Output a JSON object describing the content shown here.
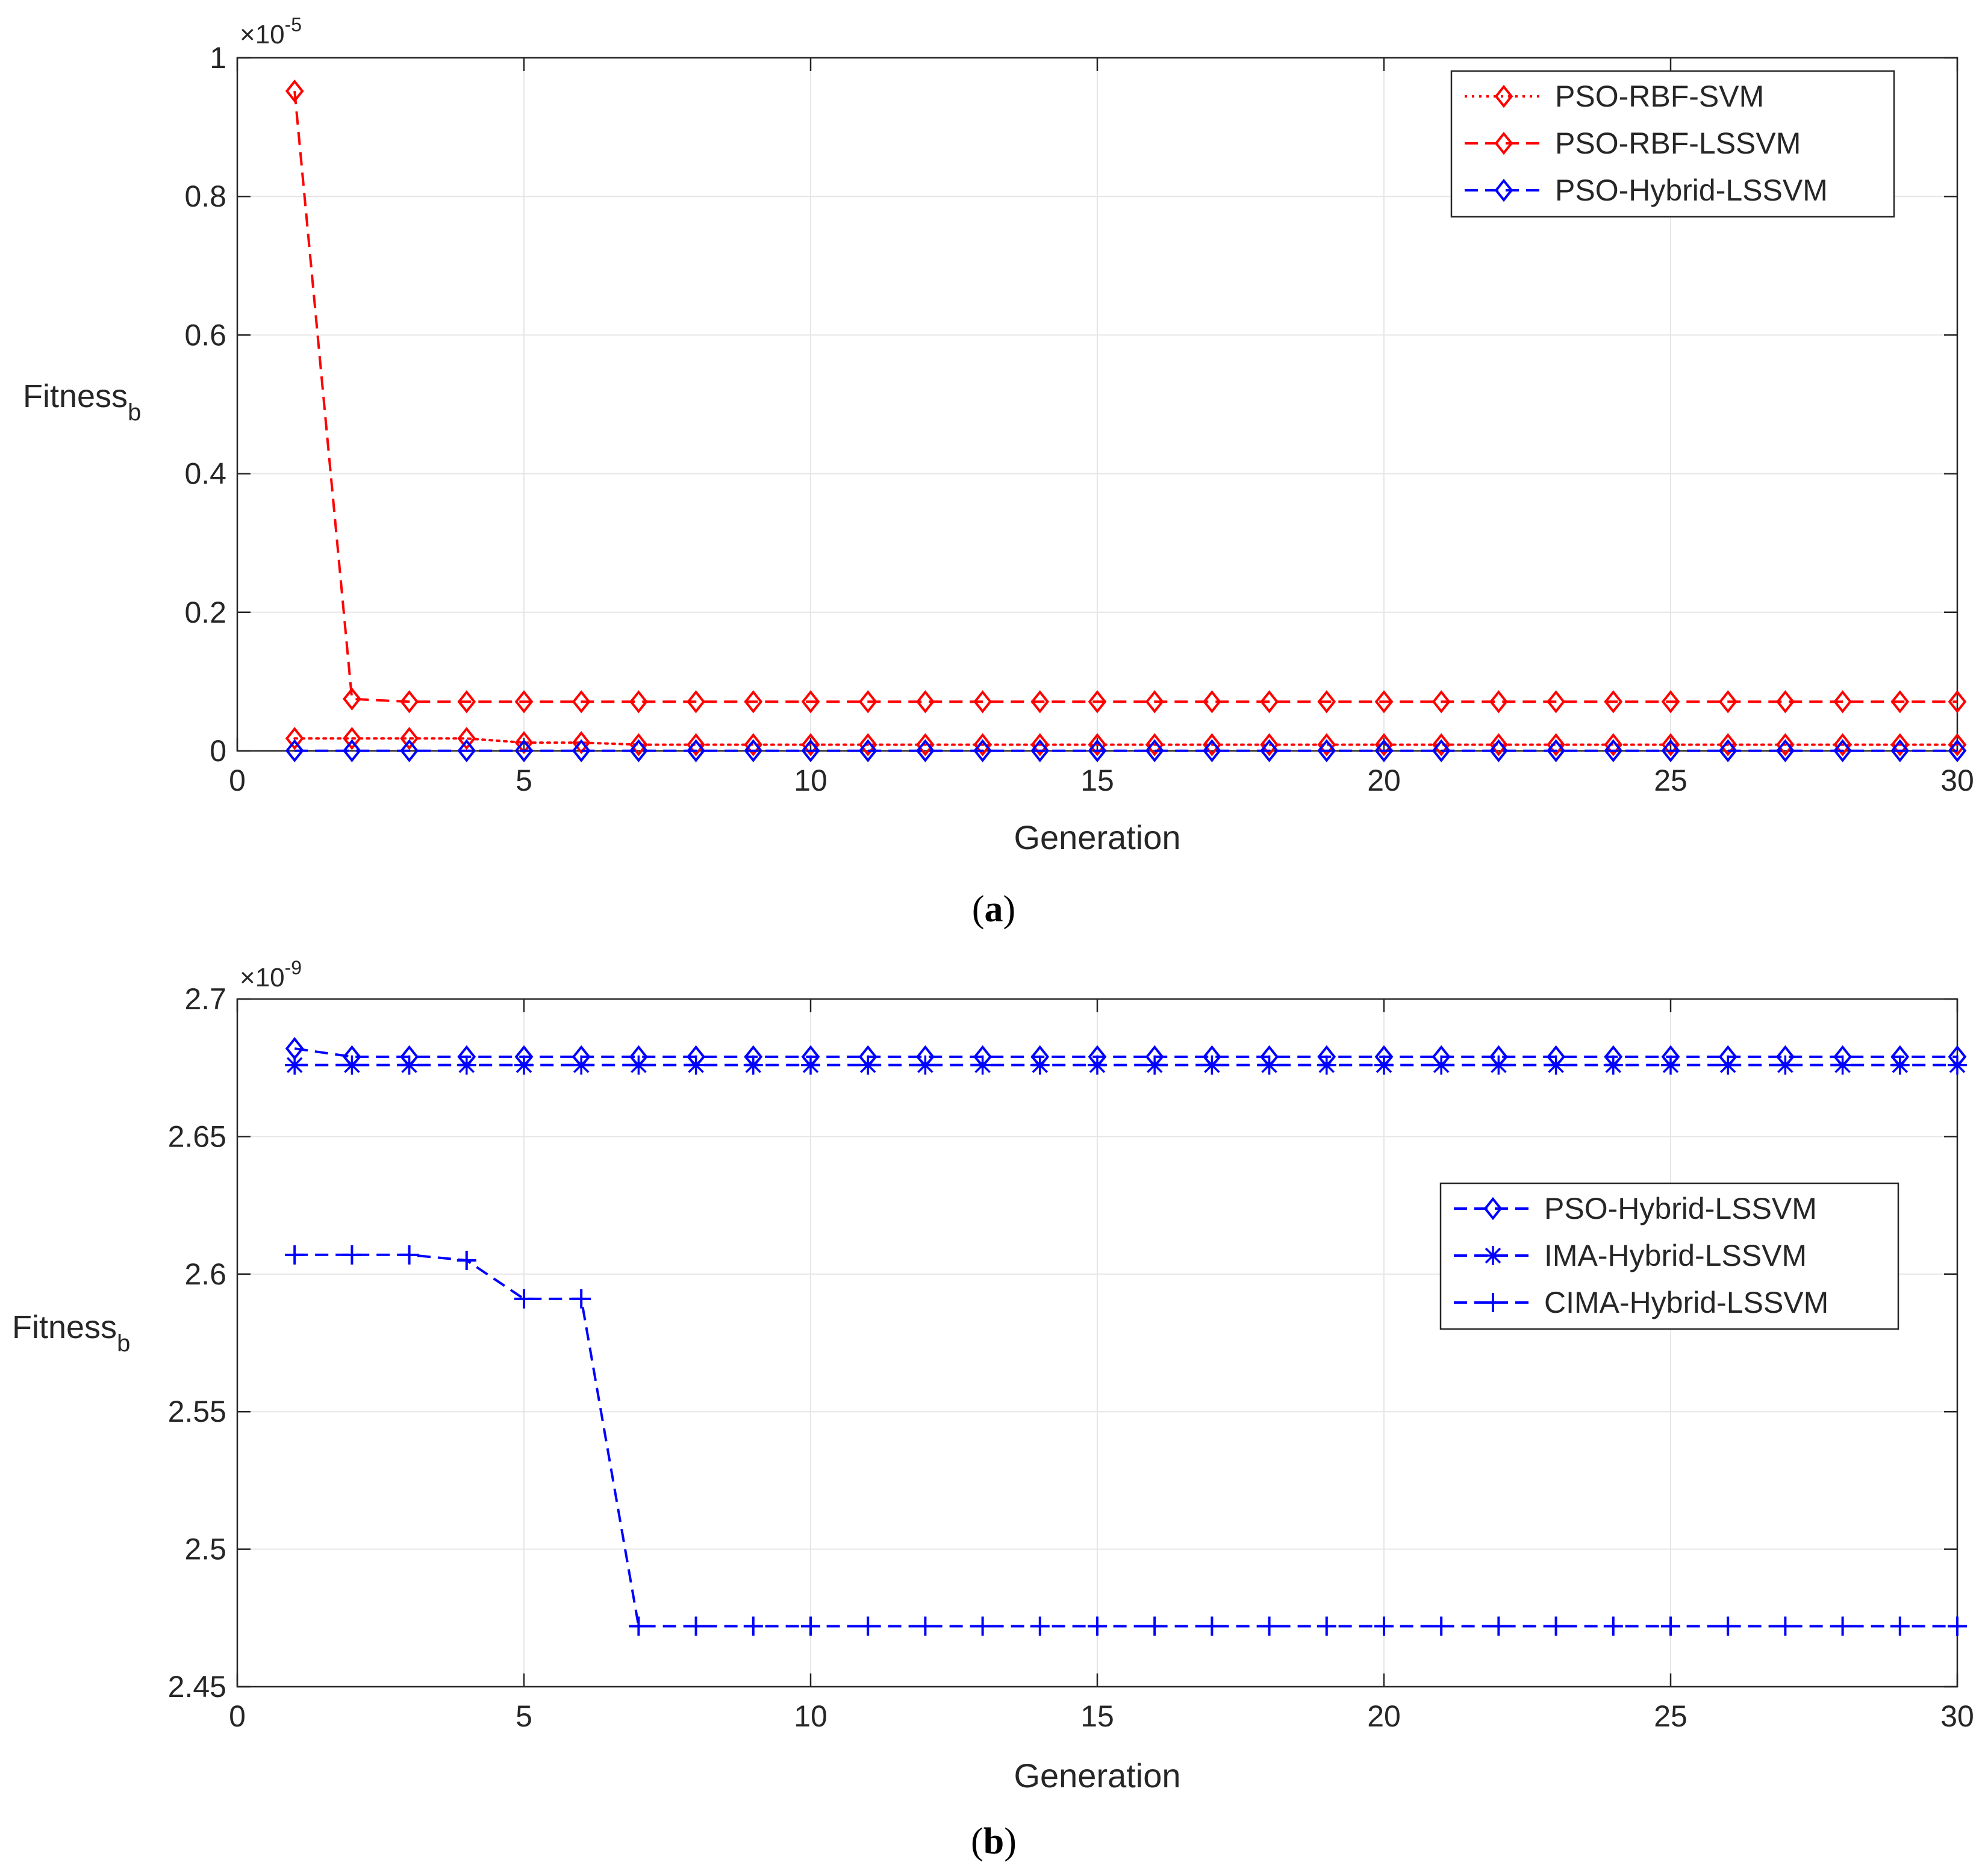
{
  "colors": {
    "red": "#ff0000",
    "blue": "#0000ff",
    "grid": "#e6e6e6",
    "axis": "#262626"
  },
  "chart_data": [
    {
      "type": "line",
      "caption_letter": "a",
      "xlabel": "Generation",
      "ylabel": "Fitness",
      "ylabel_sub": "b",
      "exponent_label": "×10",
      "exponent_power": "-5",
      "xlim": [
        0,
        30
      ],
      "ylim": [
        0,
        1
      ],
      "xticks": [
        0,
        5,
        10,
        15,
        20,
        25,
        30
      ],
      "yticks": [
        0,
        0.2,
        0.4,
        0.6,
        0.8,
        1
      ],
      "ytick_labels": [
        "0",
        "0.2",
        "0.4",
        "0.6",
        "0.8",
        "1"
      ],
      "grid": true,
      "legend_location": "top-right",
      "x": [
        1,
        2,
        3,
        4,
        5,
        6,
        7,
        8,
        9,
        10,
        11,
        12,
        13,
        14,
        15,
        16,
        17,
        18,
        19,
        20,
        21,
        22,
        23,
        24,
        25,
        26,
        27,
        28,
        29,
        30
      ],
      "series": [
        {
          "name": "PSO-RBF-SVM",
          "color": "#ff0000",
          "linestyle": "dotted",
          "marker": "diamond",
          "values": [
            0.018,
            0.018,
            0.018,
            0.018,
            0.012,
            0.012,
            0.009,
            0.009,
            0.009,
            0.009,
            0.009,
            0.009,
            0.009,
            0.009,
            0.009,
            0.009,
            0.009,
            0.009,
            0.009,
            0.009,
            0.009,
            0.009,
            0.009,
            0.009,
            0.009,
            0.009,
            0.009,
            0.009,
            0.009,
            0.009
          ]
        },
        {
          "name": "PSO-RBF-LSSVM",
          "color": "#ff0000",
          "linestyle": "dashed",
          "marker": "diamond",
          "values": [
            0.952,
            0.075,
            0.071,
            0.071,
            0.071,
            0.071,
            0.071,
            0.071,
            0.071,
            0.071,
            0.071,
            0.071,
            0.071,
            0.071,
            0.071,
            0.071,
            0.071,
            0.071,
            0.071,
            0.071,
            0.071,
            0.071,
            0.071,
            0.071,
            0.071,
            0.071,
            0.071,
            0.071,
            0.071,
            0.071
          ]
        },
        {
          "name": "PSO-Hybrid-LSSVM",
          "color": "#0000ff",
          "linestyle": "dashed",
          "marker": "diamond",
          "values": [
            0.0003,
            0.0003,
            0.0003,
            0.0003,
            0.0003,
            0.0003,
            0.0003,
            0.0003,
            0.0003,
            0.0003,
            0.0003,
            0.0003,
            0.0003,
            0.0003,
            0.0003,
            0.0003,
            0.0003,
            0.0003,
            0.0003,
            0.0003,
            0.0003,
            0.0003,
            0.0003,
            0.0003,
            0.0003,
            0.0003,
            0.0003,
            0.0003,
            0.0003,
            0.0003
          ]
        }
      ]
    },
    {
      "type": "line",
      "caption_letter": "b",
      "xlabel": "Generation",
      "ylabel": "Fitness",
      "ylabel_sub": "b",
      "exponent_label": "×10",
      "exponent_power": "-9",
      "xlim": [
        0,
        30
      ],
      "ylim": [
        2.45,
        2.7
      ],
      "xticks": [
        0,
        5,
        10,
        15,
        20,
        25,
        30
      ],
      "yticks": [
        2.45,
        2.5,
        2.55,
        2.6,
        2.65,
        2.7
      ],
      "ytick_labels": [
        "2.45",
        "2.5",
        "2.55",
        "2.6",
        "2.65",
        "2.7"
      ],
      "grid": true,
      "legend_location": "right",
      "x": [
        1,
        2,
        3,
        4,
        5,
        6,
        7,
        8,
        9,
        10,
        11,
        12,
        13,
        14,
        15,
        16,
        17,
        18,
        19,
        20,
        21,
        22,
        23,
        24,
        25,
        26,
        27,
        28,
        29,
        30
      ],
      "series": [
        {
          "name": "PSO-Hybrid-LSSVM",
          "color": "#0000ff",
          "linestyle": "dashed",
          "marker": "diamond",
          "values": [
            2.682,
            2.679,
            2.679,
            2.679,
            2.679,
            2.679,
            2.679,
            2.679,
            2.679,
            2.679,
            2.679,
            2.679,
            2.679,
            2.679,
            2.679,
            2.679,
            2.679,
            2.679,
            2.679,
            2.679,
            2.679,
            2.679,
            2.679,
            2.679,
            2.679,
            2.679,
            2.679,
            2.679,
            2.679,
            2.679
          ]
        },
        {
          "name": "IMA-Hybrid-LSSVM",
          "color": "#0000ff",
          "linestyle": "dashed",
          "marker": "asterisk",
          "values": [
            2.676,
            2.676,
            2.676,
            2.676,
            2.676,
            2.676,
            2.676,
            2.676,
            2.676,
            2.676,
            2.676,
            2.676,
            2.676,
            2.676,
            2.676,
            2.676,
            2.676,
            2.676,
            2.676,
            2.676,
            2.676,
            2.676,
            2.676,
            2.676,
            2.676,
            2.676,
            2.676,
            2.676,
            2.676,
            2.676
          ]
        },
        {
          "name": "CIMA-Hybrid-LSSVM",
          "color": "#0000ff",
          "linestyle": "dashed",
          "marker": "plus",
          "values": [
            2.607,
            2.607,
            2.607,
            2.605,
            2.591,
            2.591,
            2.472,
            2.472,
            2.472,
            2.472,
            2.472,
            2.472,
            2.472,
            2.472,
            2.472,
            2.472,
            2.472,
            2.472,
            2.472,
            2.472,
            2.472,
            2.472,
            2.472,
            2.472,
            2.472,
            2.472,
            2.472,
            2.472,
            2.472,
            2.472
          ]
        }
      ]
    }
  ]
}
